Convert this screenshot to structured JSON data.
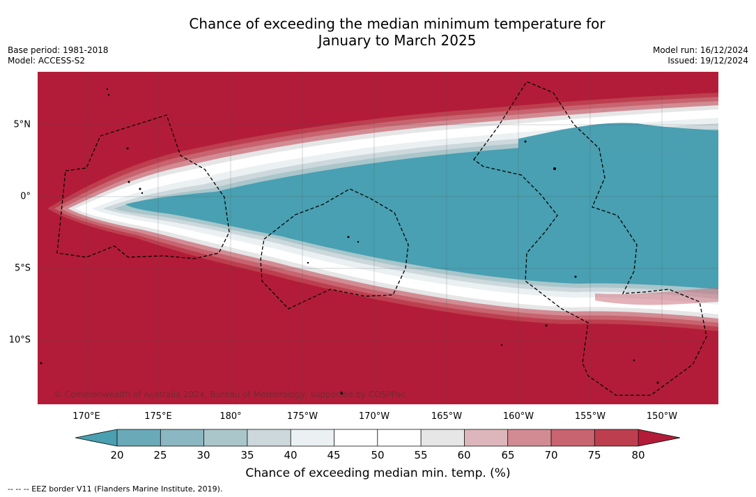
{
  "title_line1": "Chance of exceeding the median minimum temperature for",
  "title_line2": "January to March 2025",
  "meta_left": {
    "base_period": "Base period: 1981-2018",
    "model": "Model: ACCESS-S2"
  },
  "meta_right": {
    "model_run": "Model run: 16/12/2024",
    "issued": "Issued: 19/12/2024"
  },
  "map": {
    "longitude_labels": [
      "170°E",
      "175°E",
      "180°",
      "175°W",
      "170°W",
      "165°W",
      "160°W",
      "155°W",
      "150°W"
    ],
    "latitude_labels": [
      "5°N",
      "0°",
      "5°S",
      "10°S"
    ],
    "credit": "© Commonwealth of Australia 2024, Bureau of Meteorology, supported by COSPPac",
    "colors": {
      "high": "#b31c38",
      "low": "#48a0b2"
    }
  },
  "colorbar": {
    "labels": [
      "20",
      "25",
      "30",
      "35",
      "40",
      "45",
      "50",
      "55",
      "60",
      "65",
      "70",
      "75",
      "80"
    ],
    "colors": [
      "#4a9fb1",
      "#69a9b8",
      "#8bb7c2",
      "#aac6cb",
      "#cdd8dc",
      "#ebf0f2",
      "#ffffff",
      "#ffffff",
      "#e6e6e7",
      "#ddb6bb",
      "#d28b93",
      "#c8646f",
      "#bd3f4f",
      "#b31c38"
    ],
    "title": "Chance of exceeding median min. temp. (%)"
  },
  "footnote": "-- -- -- EEZ border V11 (Flanders Marine Institute, 2019)."
}
